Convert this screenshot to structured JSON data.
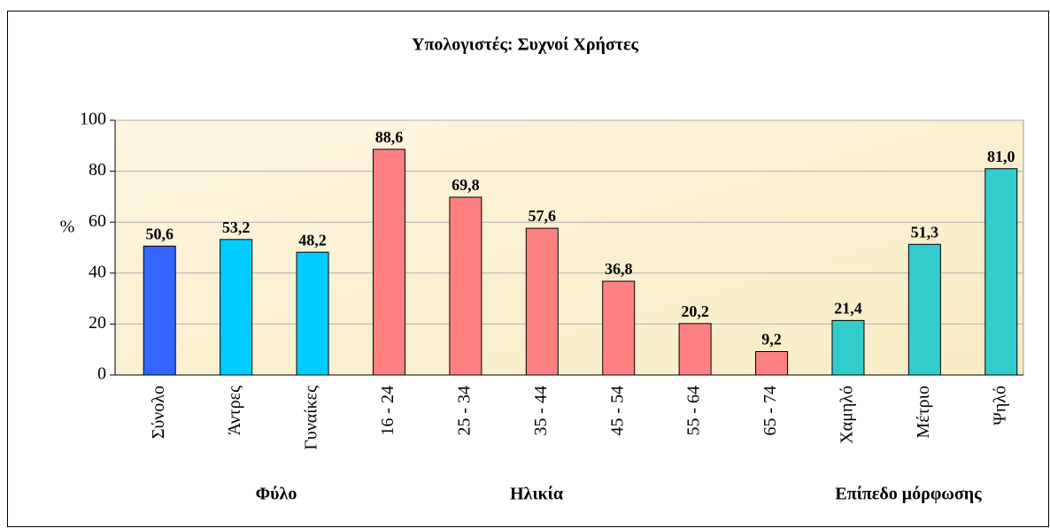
{
  "chart_data": {
    "type": "bar",
    "title": "Υπολογιστές: Συχνοί Χρήστες",
    "y_label": "%",
    "categories": [
      "Σύνολο",
      "Άντρες",
      "Γυναίκες",
      "16 - 24",
      "25 - 34",
      "35 - 44",
      "45 - 54",
      "55 - 64",
      "65 - 74",
      "Χαμηλό",
      "Μέτριο",
      "Ψηλό"
    ],
    "values": [
      50.6,
      53.2,
      48.2,
      88.6,
      69.8,
      57.6,
      36.8,
      20.2,
      9.2,
      21.4,
      51.3,
      81.0
    ],
    "value_labels": [
      "50,6",
      "53,2",
      "48,2",
      "88,6",
      "69,8",
      "57,6",
      "36,8",
      "20,2",
      "9,2",
      "21,4",
      "51,3",
      "81,0"
    ],
    "colors": [
      "#3366ff",
      "#00ccff",
      "#00ccff",
      "#ff8080",
      "#ff8080",
      "#ff8080",
      "#ff8080",
      "#ff8080",
      "#ff8080",
      "#33cccc",
      "#33cccc",
      "#33cccc"
    ],
    "group_labels": [
      "Φύλο",
      "Ηλικία",
      "Επίπεδο μόρφωσης"
    ],
    "ylim": [
      0,
      100
    ],
    "yticks": [
      0,
      20,
      40,
      60,
      80,
      100
    ],
    "grid": true
  }
}
